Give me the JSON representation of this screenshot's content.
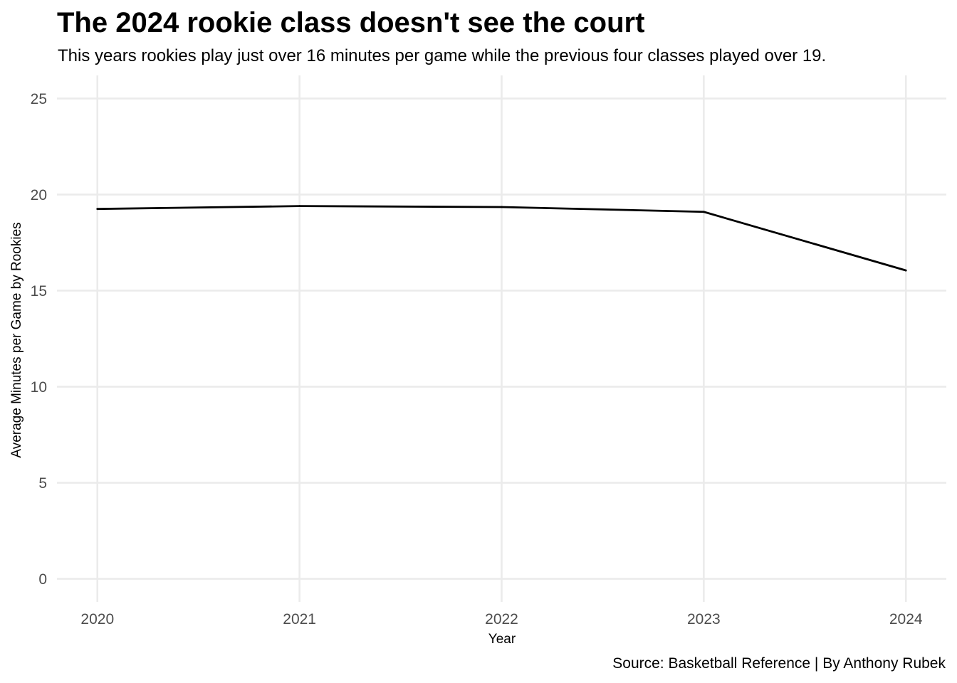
{
  "chart_data": {
    "type": "line",
    "title": "The 2024 rookie class doesn't see the court",
    "subtitle": "This years rookies play just over 16 minutes per game while the previous four classes played over 19.",
    "caption": "Source: Basketball Reference | By Anthony Rubek",
    "xlabel": "Year",
    "ylabel": "Average Minutes per Game by Rookies",
    "x": [
      2020,
      2021,
      2022,
      2023,
      2024
    ],
    "series": [
      {
        "values": [
          19.25,
          19.4,
          19.35,
          19.1,
          16.05
        ]
      }
    ],
    "xlim": [
      2019.8,
      2024.2
    ],
    "ylim": [
      -1.2,
      26.2
    ],
    "xticks": [
      "2020",
      "2021",
      "2022",
      "2023",
      "2024"
    ],
    "yticks": [
      "0",
      "5",
      "10",
      "15",
      "20",
      "25"
    ],
    "grid": true,
    "legend": "none",
    "colors": {
      "line": "#000000",
      "grid": "#ebebeb",
      "tick_text": "#4d4d4d"
    }
  }
}
